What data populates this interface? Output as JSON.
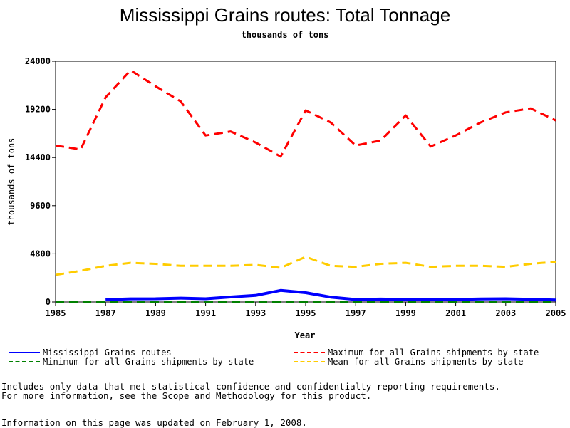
{
  "chart_data": {
    "type": "line",
    "title": "Mississippi Grains routes: Total Tonnage",
    "subtitle": "thousands of tons",
    "xlabel": "Year",
    "ylabel": "thousands of tons",
    "xlim": [
      1985,
      2005
    ],
    "ylim": [
      0,
      24000
    ],
    "x_ticks": [
      "1985",
      "1987",
      "1989",
      "1991",
      "1993",
      "1995",
      "1997",
      "1999",
      "2001",
      "2003",
      "2005"
    ],
    "y_ticks": [
      "0",
      "4800",
      "9600",
      "14400",
      "19200",
      "24000"
    ],
    "x": [
      1985,
      1986,
      1987,
      1988,
      1989,
      1990,
      1991,
      1992,
      1993,
      1994,
      1995,
      1996,
      1997,
      1998,
      1999,
      2000,
      2001,
      2002,
      2003,
      2004,
      2005
    ],
    "series": [
      {
        "name": "Mississippi Grains routes",
        "color": "#0000ff",
        "style": "solid",
        "values": [
          null,
          null,
          230,
          310,
          320,
          380,
          320,
          500,
          650,
          1150,
          920,
          480,
          250,
          290,
          250,
          270,
          250,
          300,
          320,
          260,
          200
        ]
      },
      {
        "name": "Maximum for all Grains shipments by state",
        "color": "#ff0000",
        "style": "dashed",
        "values": [
          15600,
          15200,
          20400,
          23100,
          21500,
          20000,
          16600,
          17000,
          15900,
          14500,
          19100,
          17900,
          15600,
          16100,
          18600,
          15500,
          16600,
          17900,
          18900,
          19300,
          18100
        ]
      },
      {
        "name": "Minimum for all Grains shipments by state",
        "color": "#008000",
        "style": "dashed",
        "values": [
          20,
          20,
          20,
          20,
          20,
          20,
          20,
          20,
          20,
          20,
          20,
          20,
          20,
          20,
          20,
          20,
          20,
          20,
          20,
          20,
          20
        ]
      },
      {
        "name": "Mean for all Grains shipments by state",
        "color": "#ffcc00",
        "style": "dashed",
        "values": [
          2700,
          3100,
          3600,
          3900,
          3800,
          3600,
          3600,
          3600,
          3700,
          3400,
          4500,
          3600,
          3500,
          3800,
          3900,
          3500,
          3600,
          3600,
          3500,
          3800,
          4000
        ]
      }
    ],
    "grid": false,
    "legend_position": "bottom"
  },
  "notes": {
    "line1": "Includes only data that met statistical confidence and confidentialty reporting requirements.",
    "line2": "For more information, see the Scope and Methodology for this product.",
    "line3": "Information on this page was updated on February 1, 2008."
  }
}
